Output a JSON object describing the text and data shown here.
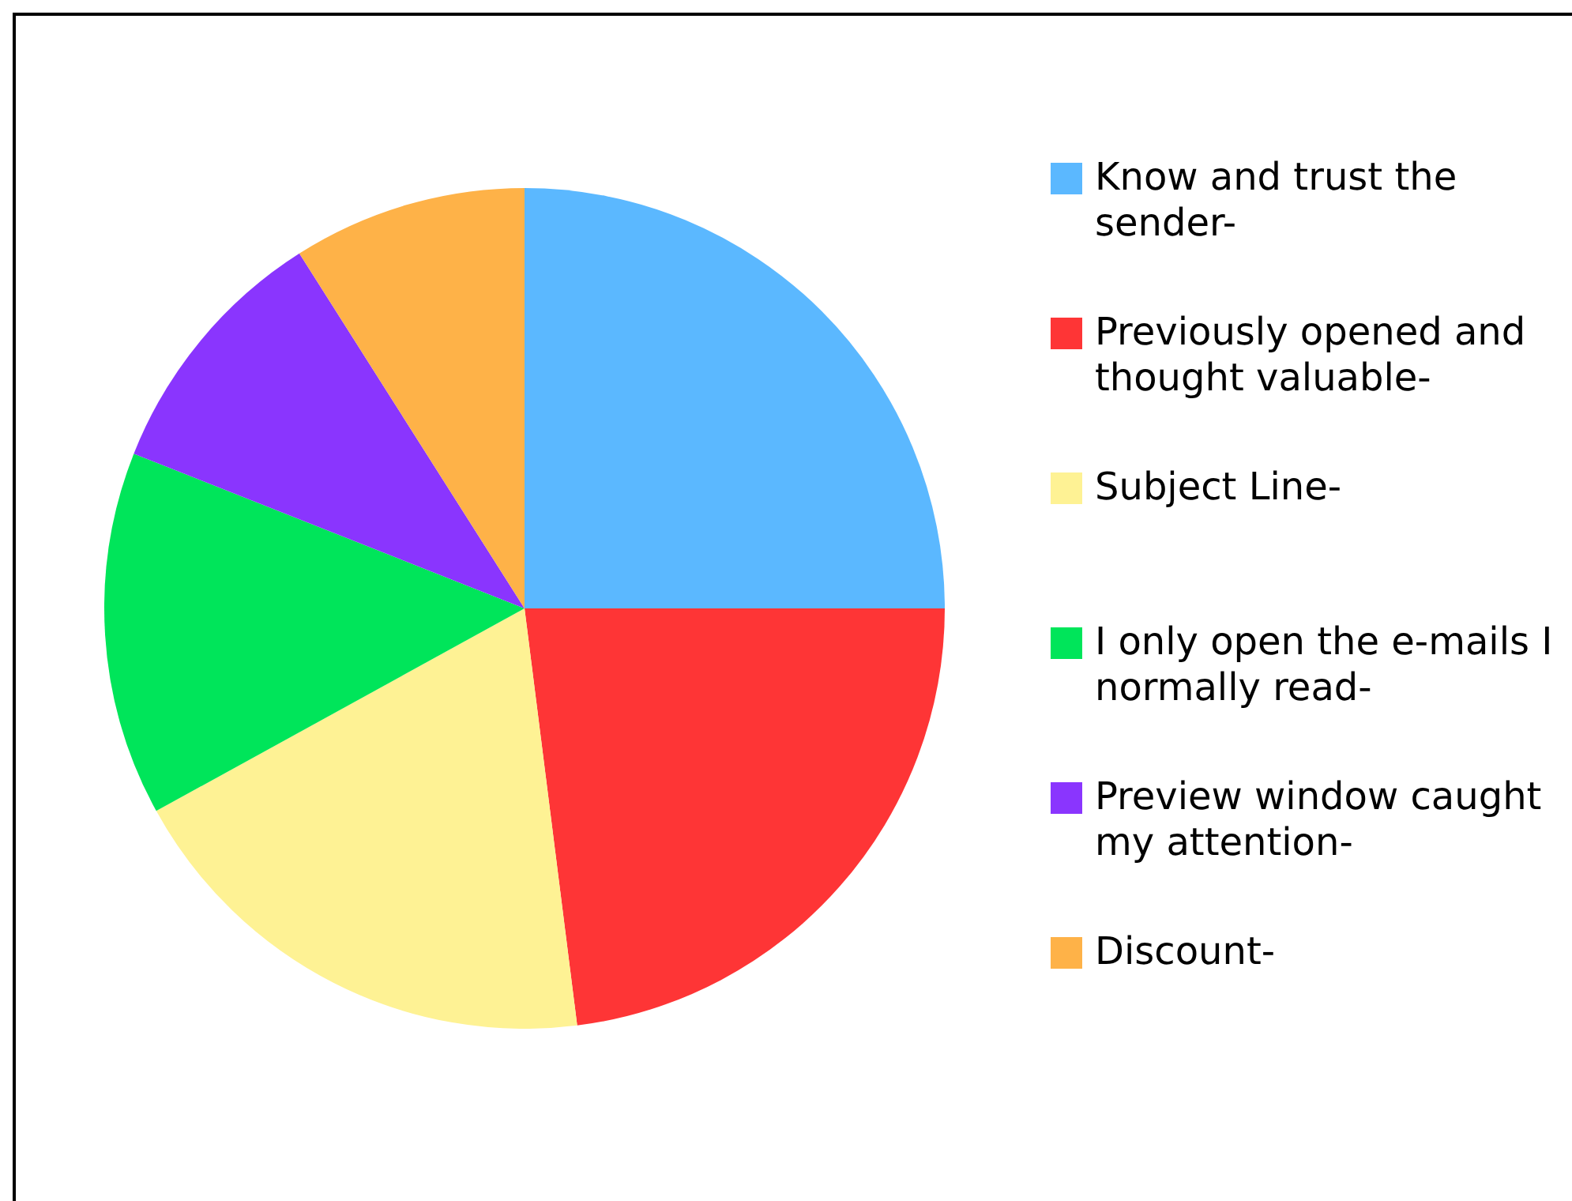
{
  "chart_data": {
    "type": "pie",
    "categories": [
      "Know and trust the sender-",
      "Previously opened and thought valuable-",
      "Subject Line-",
      "I only open the e-mails I normally read-",
      "Preview window caught my attention-",
      "Discount-"
    ],
    "values": [
      25,
      23,
      19,
      14,
      10,
      9
    ],
    "colors": [
      "#5bb8ff",
      "#fe3536",
      "#fef294",
      "#00e55a",
      "#8a35fe",
      "#feb248"
    ],
    "legend": "right"
  }
}
